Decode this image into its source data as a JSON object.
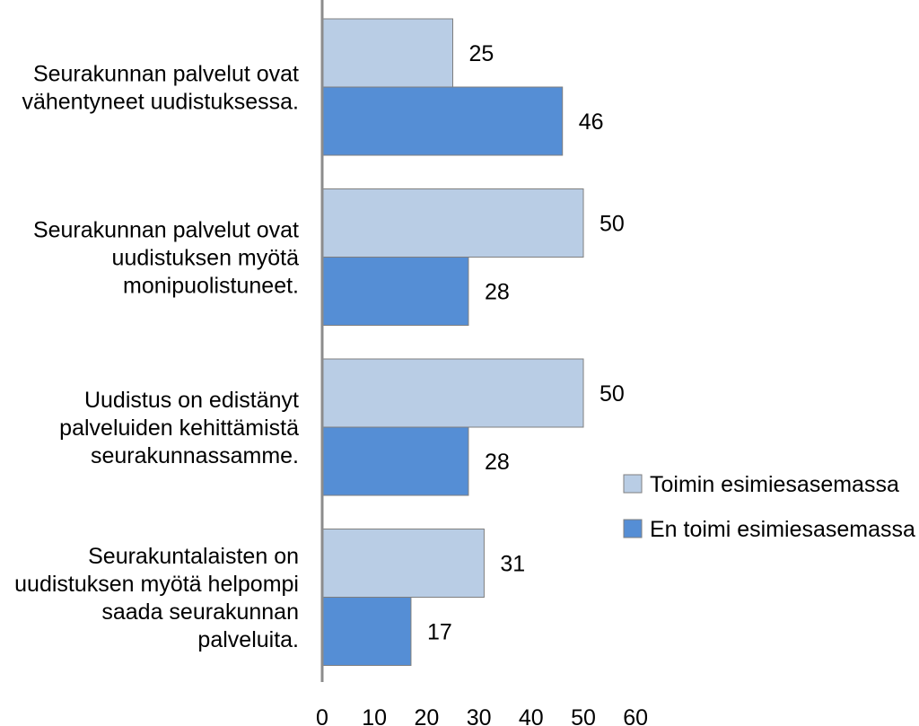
{
  "chart_data": {
    "type": "bar",
    "orientation": "horizontal",
    "categories": [
      [
        "Seurakunnan palvelut ovat",
        "vähentyneet uudistuksessa."
      ],
      [
        "Seurakunnan palvelut ovat",
        "uudistuksen myötä",
        "monipuolistuneet."
      ],
      [
        "Uudistus on edistänyt",
        "palveluiden kehittämistä",
        "seurakunnassamme."
      ],
      [
        "Seurakuntalaisten on",
        "uudistuksen myötä helpompi",
        "saada seurakunnan",
        "palveluita."
      ]
    ],
    "series": [
      {
        "name": "Toimin esimiesasemassa",
        "values": [
          25,
          50,
          50,
          31
        ],
        "color": "#B9CDE5"
      },
      {
        "name": "En toimi esimiesasemassa",
        "values": [
          46,
          28,
          28,
          17
        ],
        "color": "#558ED5"
      }
    ],
    "xlim": [
      0,
      60
    ],
    "xticks": [
      0,
      10,
      20,
      30,
      40,
      50,
      60
    ],
    "title": "",
    "xlabel": "",
    "ylabel": "",
    "data_labels": true,
    "grid": false,
    "legend_position": "right"
  }
}
